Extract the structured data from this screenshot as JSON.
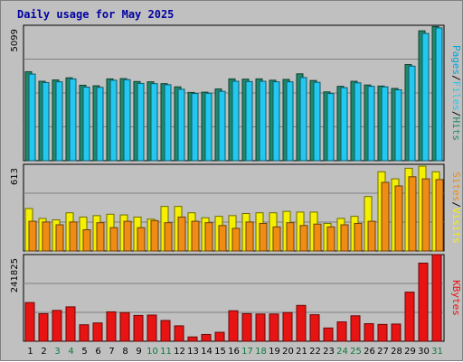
{
  "title": "Daily usage for May 2025",
  "colors": {
    "hits": "#1f8a6a",
    "files": "#22c8f0",
    "pages": "#00a8d8",
    "visits": "#f5f000",
    "sites": "#f08c14",
    "kbytes": "#e81414",
    "weekend_tick": "#0a7a3c",
    "title": "#0000a0"
  },
  "right_titles": {
    "top": [
      "Pages",
      "/",
      "Files",
      "/",
      "Hits"
    ],
    "middle": [
      "Sites",
      "/",
      "Visits"
    ],
    "bottom": [
      "KBytes"
    ]
  },
  "chart_data": [
    {
      "type": "bar",
      "panel": "hits-files-pages",
      "ylabel": "5099",
      "ylim": [
        0,
        5099
      ],
      "grid": true,
      "x": [
        1,
        2,
        3,
        4,
        5,
        6,
        7,
        8,
        9,
        10,
        11,
        12,
        13,
        14,
        15,
        16,
        17,
        18,
        19,
        20,
        21,
        22,
        23,
        24,
        25,
        26,
        27,
        28,
        29,
        30,
        31
      ],
      "series": [
        {
          "name": "Hits",
          "values": [
            3350,
            2990,
            3040,
            3120,
            2840,
            2820,
            3080,
            3090,
            2980,
            2970,
            2900,
            2780,
            2570,
            2580,
            2700,
            3080,
            3070,
            3080,
            3030,
            3060,
            3270,
            3020,
            2590,
            2800,
            2990,
            2850,
            2810,
            2720,
            3620,
            4890,
            5050
          ]
        },
        {
          "name": "Files",
          "values": [
            3260,
            2940,
            2970,
            3080,
            2770,
            2760,
            3030,
            3050,
            2910,
            2900,
            2860,
            2690,
            2530,
            2540,
            2610,
            2990,
            2980,
            2990,
            2970,
            2970,
            3130,
            2950,
            2530,
            2750,
            2930,
            2800,
            2780,
            2670,
            3560,
            4790,
            5000
          ]
        }
      ]
    },
    {
      "type": "bar",
      "panel": "visits-sites",
      "ylabel": "613",
      "ylim": [
        0,
        613
      ],
      "grid": true,
      "x": [
        1,
        2,
        3,
        4,
        5,
        6,
        7,
        8,
        9,
        10,
        11,
        12,
        13,
        14,
        15,
        16,
        17,
        18,
        19,
        20,
        21,
        22,
        23,
        24,
        25,
        26,
        27,
        28,
        29,
        30,
        31
      ],
      "series": [
        {
          "name": "Visits",
          "values": [
            300,
            230,
            220,
            270,
            240,
            250,
            260,
            255,
            240,
            225,
            315,
            315,
            270,
            235,
            245,
            250,
            265,
            270,
            270,
            280,
            275,
            275,
            195,
            230,
            245,
            385,
            560,
            510,
            585,
            600,
            560
          ]
        },
        {
          "name": "Sites",
          "values": [
            210,
            205,
            185,
            205,
            150,
            200,
            165,
            210,
            165,
            215,
            200,
            240,
            210,
            200,
            180,
            160,
            205,
            195,
            170,
            200,
            180,
            190,
            170,
            185,
            195,
            210,
            485,
            460,
            525,
            510,
            505
          ]
        }
      ]
    },
    {
      "type": "bar",
      "panel": "kbytes",
      "ylabel": "241825",
      "ylim": [
        0,
        241825
      ],
      "grid": true,
      "x": [
        1,
        2,
        3,
        4,
        5,
        6,
        7,
        8,
        9,
        10,
        11,
        12,
        13,
        14,
        15,
        16,
        17,
        18,
        19,
        20,
        21,
        22,
        23,
        24,
        25,
        26,
        27,
        28,
        29,
        30,
        31
      ],
      "series": [
        {
          "name": "KBytes",
          "values": [
            108000,
            77000,
            86000,
            96000,
            46000,
            51000,
            82000,
            80000,
            72000,
            73000,
            58000,
            43000,
            12000,
            19000,
            25000,
            85000,
            77000,
            76000,
            76000,
            80000,
            100000,
            74000,
            37000,
            54000,
            71000,
            49000,
            47000,
            48000,
            137000,
            218000,
            241825
          ]
        }
      ]
    }
  ],
  "x_ticks": [
    "1",
    "2",
    "3",
    "4",
    "5",
    "6",
    "7",
    "8",
    "9",
    "10",
    "11",
    "12",
    "13",
    "14",
    "15",
    "16",
    "17",
    "18",
    "19",
    "20",
    "21",
    "22",
    "23",
    "24",
    "25",
    "26",
    "27",
    "28",
    "29",
    "30",
    "31"
  ],
  "weekend_days": [
    3,
    4,
    10,
    11,
    17,
    18,
    24,
    25,
    31
  ]
}
